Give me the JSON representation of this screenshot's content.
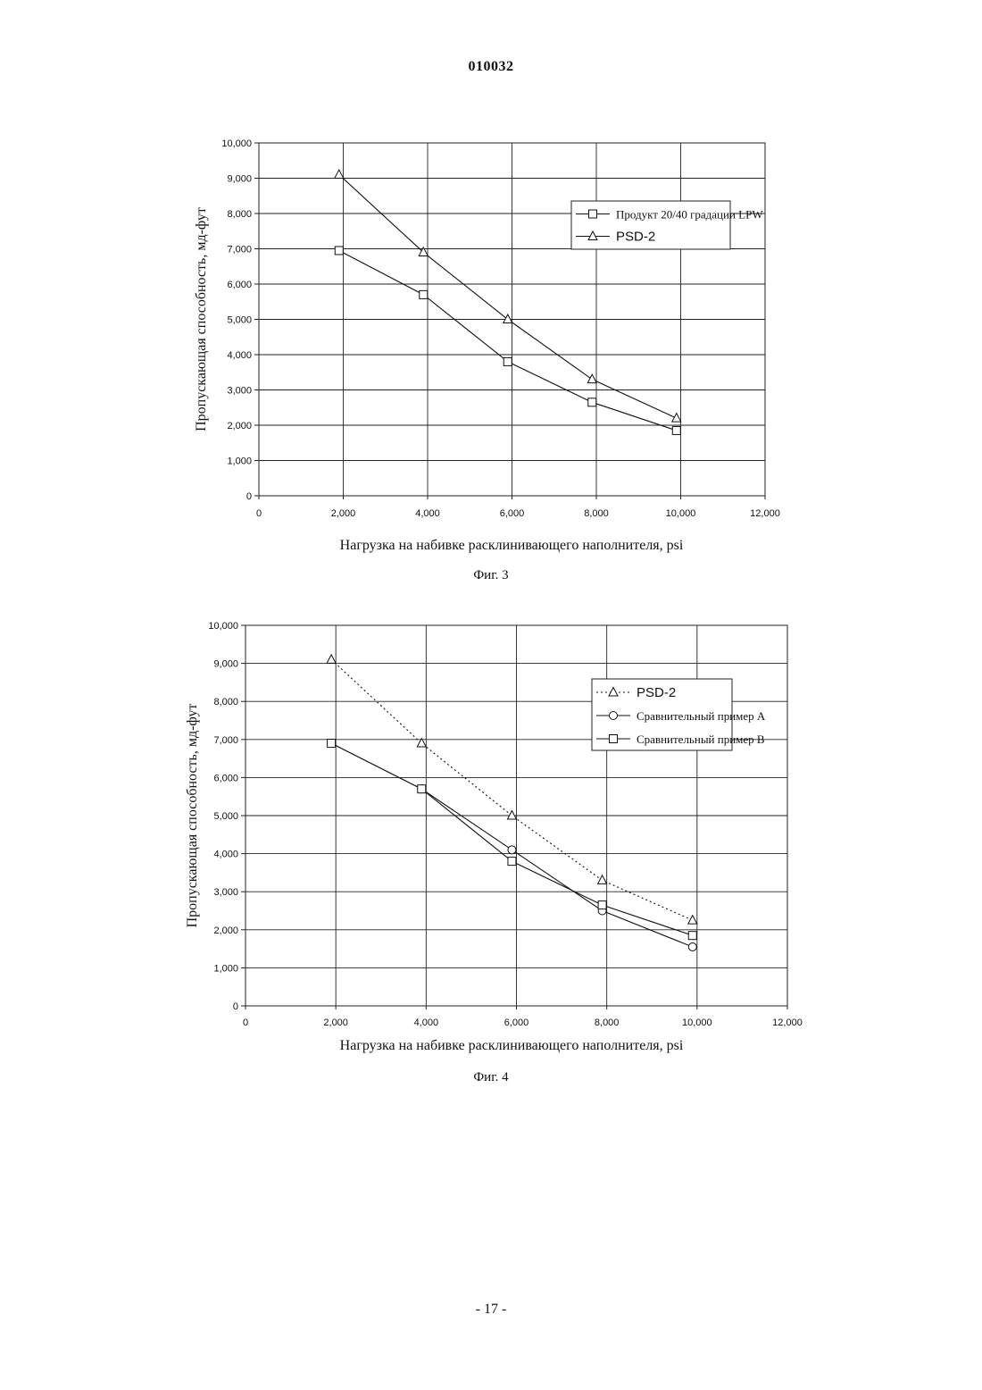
{
  "header": {
    "doc_id": "010032"
  },
  "footer": {
    "page_number": "- 17 -"
  },
  "chart_data": [
    {
      "type": "line",
      "caption": "Фиг. 3",
      "title": "",
      "xlabel": "Нагрузка на набивке расклинивающего наполнителя, psi",
      "ylabel": "Пропускающая способность, мд-фут",
      "xlim": [
        0,
        12000
      ],
      "ylim": [
        0,
        10000
      ],
      "x_ticks": [
        "0",
        "2,000",
        "4,000",
        "6,000",
        "8,000",
        "10,000",
        "12,000"
      ],
      "y_ticks": [
        "0",
        "1,000",
        "2,000",
        "3,000",
        "4,000",
        "5,000",
        "6,000",
        "7,000",
        "8,000",
        "9,000",
        "10,000"
      ],
      "grid": true,
      "legend_position": "top-right",
      "series": [
        {
          "name": "Продукт 20/40 градации LPW",
          "marker": "square",
          "dash": "solid",
          "x": [
            1900,
            3900,
            5900,
            7900,
            9900
          ],
          "y": [
            6950,
            5700,
            3800,
            2650,
            1850
          ]
        },
        {
          "name": "PSD-2",
          "marker": "triangle",
          "dash": "solid",
          "x": [
            1900,
            3900,
            5900,
            7900,
            9900
          ],
          "y": [
            9100,
            6900,
            5000,
            3300,
            2200
          ]
        }
      ]
    },
    {
      "type": "line",
      "caption": "Фиг. 4",
      "title": "",
      "xlabel": "Нагрузка на набивке расклинивающего наполнителя, psi",
      "ylabel": "Пропускающая способность, мд-фут",
      "xlim": [
        0,
        12000
      ],
      "ylim": [
        0,
        10000
      ],
      "x_ticks": [
        "0",
        "2,000",
        "4,000",
        "6,000",
        "8,000",
        "10,000",
        "12,000"
      ],
      "y_ticks": [
        "0",
        "1,000",
        "2,000",
        "3,000",
        "4,000",
        "5,000",
        "6,000",
        "7,000",
        "8,000",
        "9,000",
        "10,000"
      ],
      "grid": true,
      "legend_position": "top-right",
      "series": [
        {
          "name": "PSD-2",
          "marker": "triangle",
          "dash": "dotted",
          "x": [
            1900,
            3900,
            5900,
            7900,
            9900
          ],
          "y": [
            9100,
            6900,
            5000,
            3300,
            2250
          ]
        },
        {
          "name": "Сравнительный пример А",
          "marker": "circle",
          "dash": "solid",
          "x": [
            1900,
            3900,
            5900,
            7900,
            9900
          ],
          "y": [
            6900,
            5700,
            4100,
            2500,
            1550
          ]
        },
        {
          "name": "Сравнительный пример В",
          "marker": "square",
          "dash": "solid",
          "x": [
            1900,
            3900,
            5900,
            7900,
            9900
          ],
          "y": [
            6900,
            5700,
            3800,
            2650,
            1850
          ]
        }
      ]
    }
  ]
}
